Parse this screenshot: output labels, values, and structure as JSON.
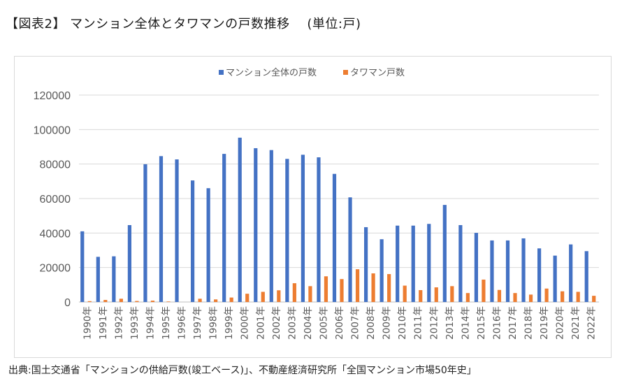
{
  "header": {
    "title": "【図表2】 マンション全体とタワマンの戸数推移　 (単位:戸)"
  },
  "footer": {
    "source": "出典:国土交通省「マンションの供給戸数(竣工ベース)」、不動産経済研究所「全国マンション市場50年史」"
  },
  "chart_data": {
    "type": "bar",
    "title": "マンション全体とタワマンの戸数推移",
    "unit": "戸",
    "xlabel": "",
    "ylabel": "",
    "ylim": [
      0,
      120000
    ],
    "yticks": [
      0,
      20000,
      40000,
      60000,
      80000,
      100000,
      120000
    ],
    "grid": true,
    "legend_position": "top-center",
    "categories": [
      "1990年",
      "1991年",
      "1992年",
      "1993年",
      "1994年",
      "1995年",
      "1996年",
      "1997年",
      "1998年",
      "1999年",
      "2000年",
      "2001年",
      "2002年",
      "2003年",
      "2004年",
      "2005年",
      "2006年",
      "2007年",
      "2008年",
      "2009年",
      "2010年",
      "2011年",
      "2012年",
      "2013年",
      "2014年",
      "2015年",
      "2016年",
      "2017年",
      "2018年",
      "2019年",
      "2020年",
      "2021年",
      "2022年"
    ],
    "series": [
      {
        "name": "マンション全体の戸数",
        "color": "#4472c4",
        "values": [
          41000,
          26200,
          26500,
          44600,
          79900,
          84600,
          82700,
          70500,
          66000,
          85900,
          95300,
          89200,
          88100,
          83000,
          85400,
          83900,
          74300,
          60700,
          43400,
          36400,
          44300,
          44300,
          45300,
          56300,
          44600,
          40100,
          35700,
          35700,
          36900,
          31100,
          26900,
          33400,
          29500
        ]
      },
      {
        "name": "タワマン戸数",
        "color": "#ed7d31",
        "values": [
          500,
          1200,
          1900,
          600,
          800,
          300,
          0,
          1900,
          1500,
          2600,
          4800,
          5900,
          6800,
          10900,
          9200,
          14900,
          13300,
          19000,
          16600,
          16200,
          9500,
          6900,
          8500,
          9200,
          5200,
          13000,
          7000,
          5200,
          4300,
          7800,
          6200,
          5900,
          3600
        ]
      }
    ]
  }
}
